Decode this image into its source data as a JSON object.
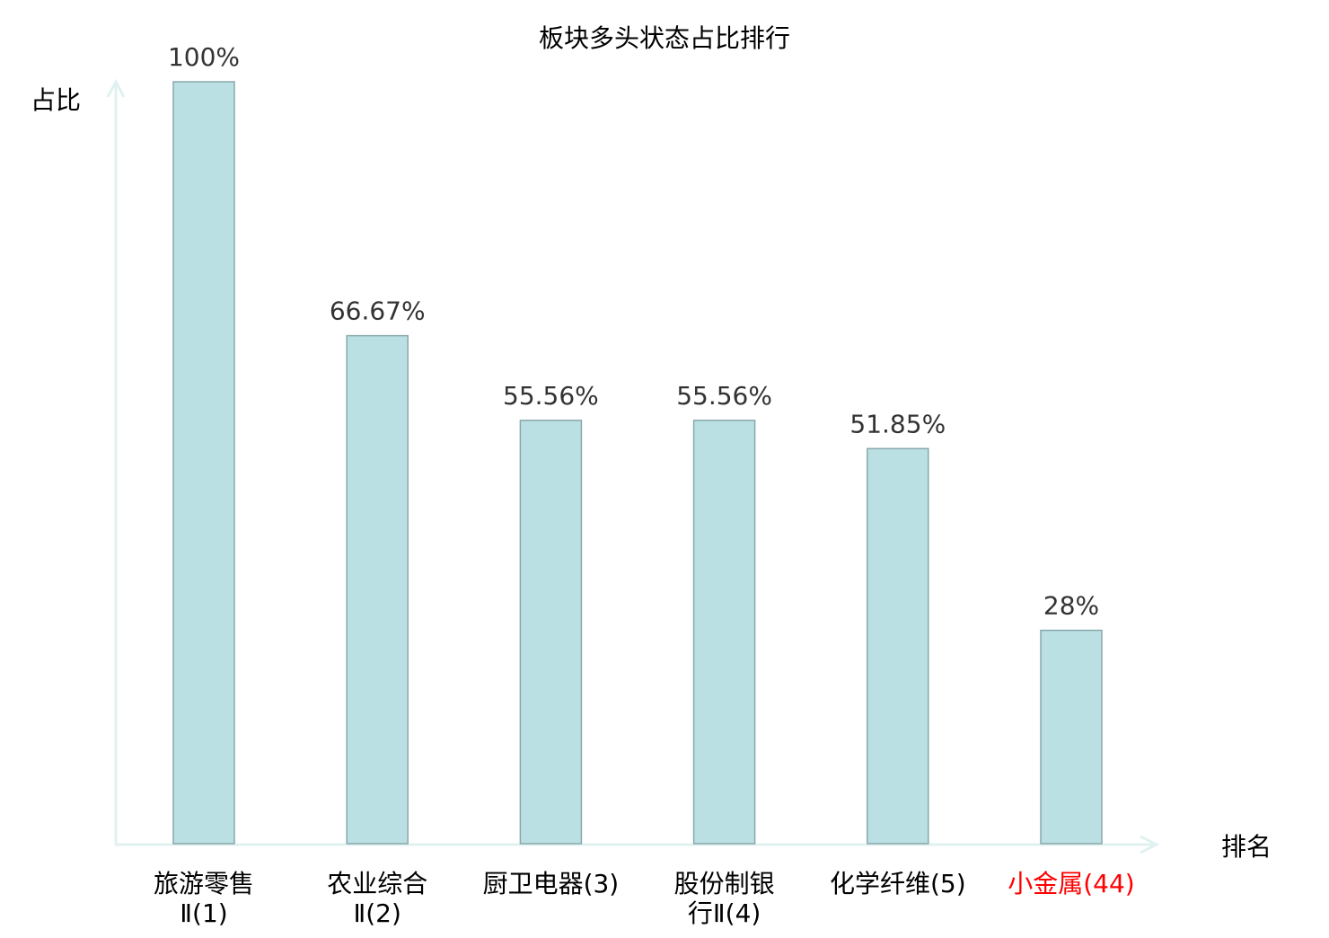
{
  "chart_data": {
    "type": "bar",
    "title": "板块多头状态占比排行",
    "xlabel": "排名",
    "ylabel": "占比",
    "ylim": [
      0,
      100
    ],
    "grid": false,
    "categories": [
      {
        "lines": [
          "旅游零售",
          "Ⅱ(1)"
        ],
        "highlight": false
      },
      {
        "lines": [
          "农业综合",
          "Ⅱ(2)"
        ],
        "highlight": false
      },
      {
        "lines": [
          "厨卫电器(3)"
        ],
        "highlight": false
      },
      {
        "lines": [
          "股份制银",
          "行Ⅱ(4)"
        ],
        "highlight": false
      },
      {
        "lines": [
          "化学纤维(5)"
        ],
        "highlight": false
      },
      {
        "lines": [
          "小金属(44)"
        ],
        "highlight": true
      }
    ],
    "values": [
      100,
      66.67,
      55.56,
      55.56,
      51.85,
      28
    ],
    "value_labels": [
      "100%",
      "66.67%",
      "55.56%",
      "55.56%",
      "51.85%",
      "28%"
    ],
    "colors": {
      "bar_fill": "#bbe0e3",
      "bar_stroke": "#88a8ab",
      "axis": "#e0f2f0",
      "text": "#000000",
      "value_text": "#333333",
      "highlight": "#ff0000"
    }
  }
}
